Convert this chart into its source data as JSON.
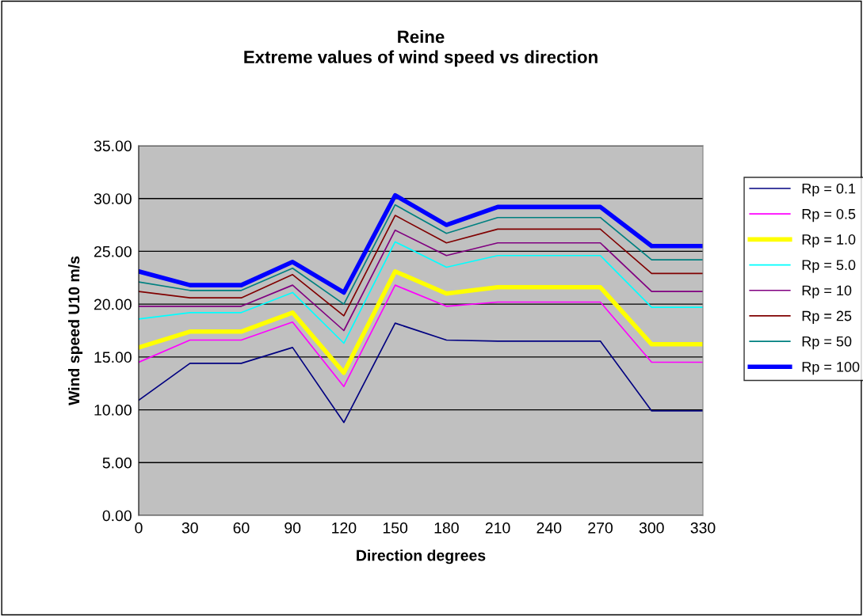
{
  "chart_data": {
    "type": "line",
    "title": "Reine\nExtreme values of wind speed vs direction",
    "xlabel": "Direction degrees",
    "ylabel": "Wind speed U10 m/s",
    "categories": [
      "0",
      "30",
      "60",
      "90",
      "120",
      "150",
      "180",
      "210",
      "240",
      "270",
      "300",
      "330"
    ],
    "ylim": [
      0,
      35
    ],
    "yticks": [
      {
        "value": 0,
        "label": "0.00"
      },
      {
        "value": 5,
        "label": "5.00"
      },
      {
        "value": 10,
        "label": "10.00"
      },
      {
        "value": 15,
        "label": "15.00"
      },
      {
        "value": 20,
        "label": "20.00"
      },
      {
        "value": 25,
        "label": "25.00"
      },
      {
        "value": 30,
        "label": "30.00"
      },
      {
        "value": 35,
        "label": "35.00"
      }
    ],
    "grid": "y",
    "legend": "right",
    "marker": "none",
    "line_style": "solid",
    "series": [
      {
        "name": "Rp = 0.1",
        "color": "#000080",
        "values": [
          10.9,
          14.4,
          14.4,
          15.9,
          8.8,
          18.2,
          16.6,
          16.5,
          16.5,
          16.5,
          9.9,
          9.9
        ]
      },
      {
        "name": "Rp = 0.5",
        "color": "#ff00ff",
        "values": [
          14.5,
          16.6,
          16.6,
          18.3,
          12.2,
          21.8,
          19.8,
          20.2,
          20.2,
          20.2,
          14.5,
          14.5
        ]
      },
      {
        "name": "Rp = 1.0",
        "color": "#ffff00",
        "values": [
          15.9,
          17.4,
          17.4,
          19.2,
          13.5,
          23.1,
          21.0,
          21.6,
          21.6,
          21.6,
          16.2,
          16.2
        ]
      },
      {
        "name": "Rp = 5.0",
        "color": "#00ffff",
        "values": [
          18.6,
          19.2,
          19.2,
          21.1,
          16.3,
          25.9,
          23.5,
          24.6,
          24.6,
          24.6,
          19.7,
          19.7
        ]
      },
      {
        "name": "Rp = 10",
        "color": "#800080",
        "values": [
          19.8,
          19.8,
          19.8,
          21.8,
          17.5,
          27.0,
          24.6,
          25.8,
          25.8,
          25.8,
          21.2,
          21.2
        ]
      },
      {
        "name": "Rp = 25",
        "color": "#800000",
        "values": [
          21.2,
          20.6,
          20.6,
          22.8,
          18.9,
          28.4,
          25.8,
          27.1,
          27.1,
          27.1,
          22.9,
          22.9
        ]
      },
      {
        "name": "Rp = 50",
        "color": "#008080",
        "values": [
          22.1,
          21.3,
          21.3,
          23.4,
          20.0,
          29.4,
          26.7,
          28.2,
          28.2,
          28.2,
          24.2,
          24.2
        ]
      },
      {
        "name": "Rp = 100",
        "color": "#0000ff",
        "values": [
          23.1,
          21.8,
          21.8,
          24.0,
          21.1,
          30.3,
          27.5,
          29.2,
          29.2,
          29.2,
          25.5,
          25.5
        ]
      }
    ]
  }
}
